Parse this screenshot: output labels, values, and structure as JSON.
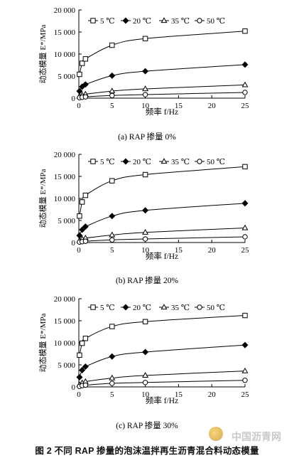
{
  "figure_caption": "图 2   不同 RAP 掺量的泡沫温拌再生沥青混合料动态模量",
  "watermark": "中国沥青网",
  "legend_labels": [
    "5 ℃",
    "20 ℃",
    "35 ℃",
    "50 ℃"
  ],
  "chart_data": [
    {
      "type": "line",
      "title": "(a) RAP 掺量 0%",
      "xlabel": "频率 f/Hz",
      "ylabel": "动态模量 E*/MPa",
      "xlim": [
        0,
        25
      ],
      "ylim": [
        0,
        20000
      ],
      "xticks": [
        "0",
        "5",
        "10",
        "15",
        "20",
        "25"
      ],
      "yticks": [
        "0",
        "5 000",
        "10 000",
        "15 000",
        "20 000"
      ],
      "grid": false,
      "legend_position": "top",
      "x": [
        0.1,
        0.5,
        1,
        5,
        10,
        25
      ],
      "series": [
        {
          "name": "5 ℃",
          "marker": "square",
          "values": [
            5400,
            7900,
            8900,
            12000,
            13500,
            15200
          ]
        },
        {
          "name": "20 ℃",
          "marker": "diamond",
          "values": [
            1600,
            2600,
            3100,
            5100,
            6100,
            7600
          ]
        },
        {
          "name": "35 ℃",
          "marker": "triangle",
          "values": [
            400,
            700,
            900,
            1600,
            2100,
            3000
          ]
        },
        {
          "name": "50 ℃",
          "marker": "circle",
          "values": [
            100,
            200,
            300,
            600,
            800,
            1300
          ]
        }
      ]
    },
    {
      "type": "line",
      "title": "(b) RAP 掺量 20%",
      "xlabel": "频率 f/Hz",
      "ylabel": "动态模量 E*/MPa",
      "xlim": [
        0,
        25
      ],
      "ylim": [
        0,
        20000
      ],
      "xticks": [
        "0",
        "5",
        "10",
        "15",
        "20",
        "25"
      ],
      "yticks": [
        "0",
        "5 000",
        "10 000",
        "15 000",
        "20 000"
      ],
      "grid": false,
      "legend_position": "top",
      "x": [
        0.1,
        0.5,
        1,
        5,
        10,
        25
      ],
      "series": [
        {
          "name": "5 ℃",
          "marker": "square",
          "values": [
            6000,
            9200,
            10700,
            14000,
            15400,
            17200
          ]
        },
        {
          "name": "20 ℃",
          "marker": "diamond",
          "values": [
            1600,
            2900,
            3600,
            6000,
            7300,
            8900
          ]
        },
        {
          "name": "35 ℃",
          "marker": "triangle",
          "values": [
            400,
            800,
            1000,
            1700,
            2300,
            3300
          ]
        },
        {
          "name": "50 ℃",
          "marker": "circle",
          "values": [
            100,
            200,
            300,
            600,
            800,
            1300
          ]
        }
      ]
    },
    {
      "type": "line",
      "title": "(c) RAP 掺量 30%",
      "xlabel": "频率 f/Hz",
      "ylabel": "动态模量 E*/MPa",
      "xlim": [
        0,
        25
      ],
      "ylim": [
        0,
        20000
      ],
      "xticks": [
        "0",
        "5",
        "10",
        "15",
        "20",
        "25"
      ],
      "yticks": [
        "0",
        "5 000",
        "10 000",
        "15 000",
        "20 000"
      ],
      "grid": false,
      "legend_position": "top",
      "x": [
        0.1,
        0.5,
        1,
        5,
        10,
        25
      ],
      "series": [
        {
          "name": "5 ℃",
          "marker": "square",
          "values": [
            7200,
            9900,
            11000,
            13700,
            14800,
            16200
          ]
        },
        {
          "name": "20 ℃",
          "marker": "diamond",
          "values": [
            2200,
            3800,
            4600,
            6900,
            7900,
            9500
          ]
        },
        {
          "name": "35 ℃",
          "marker": "triangle",
          "values": [
            500,
            900,
            1200,
            2000,
            2600,
            3600
          ]
        },
        {
          "name": "50 ℃",
          "marker": "circle",
          "values": [
            100,
            300,
            400,
            800,
            1000,
            1500
          ]
        }
      ]
    }
  ]
}
